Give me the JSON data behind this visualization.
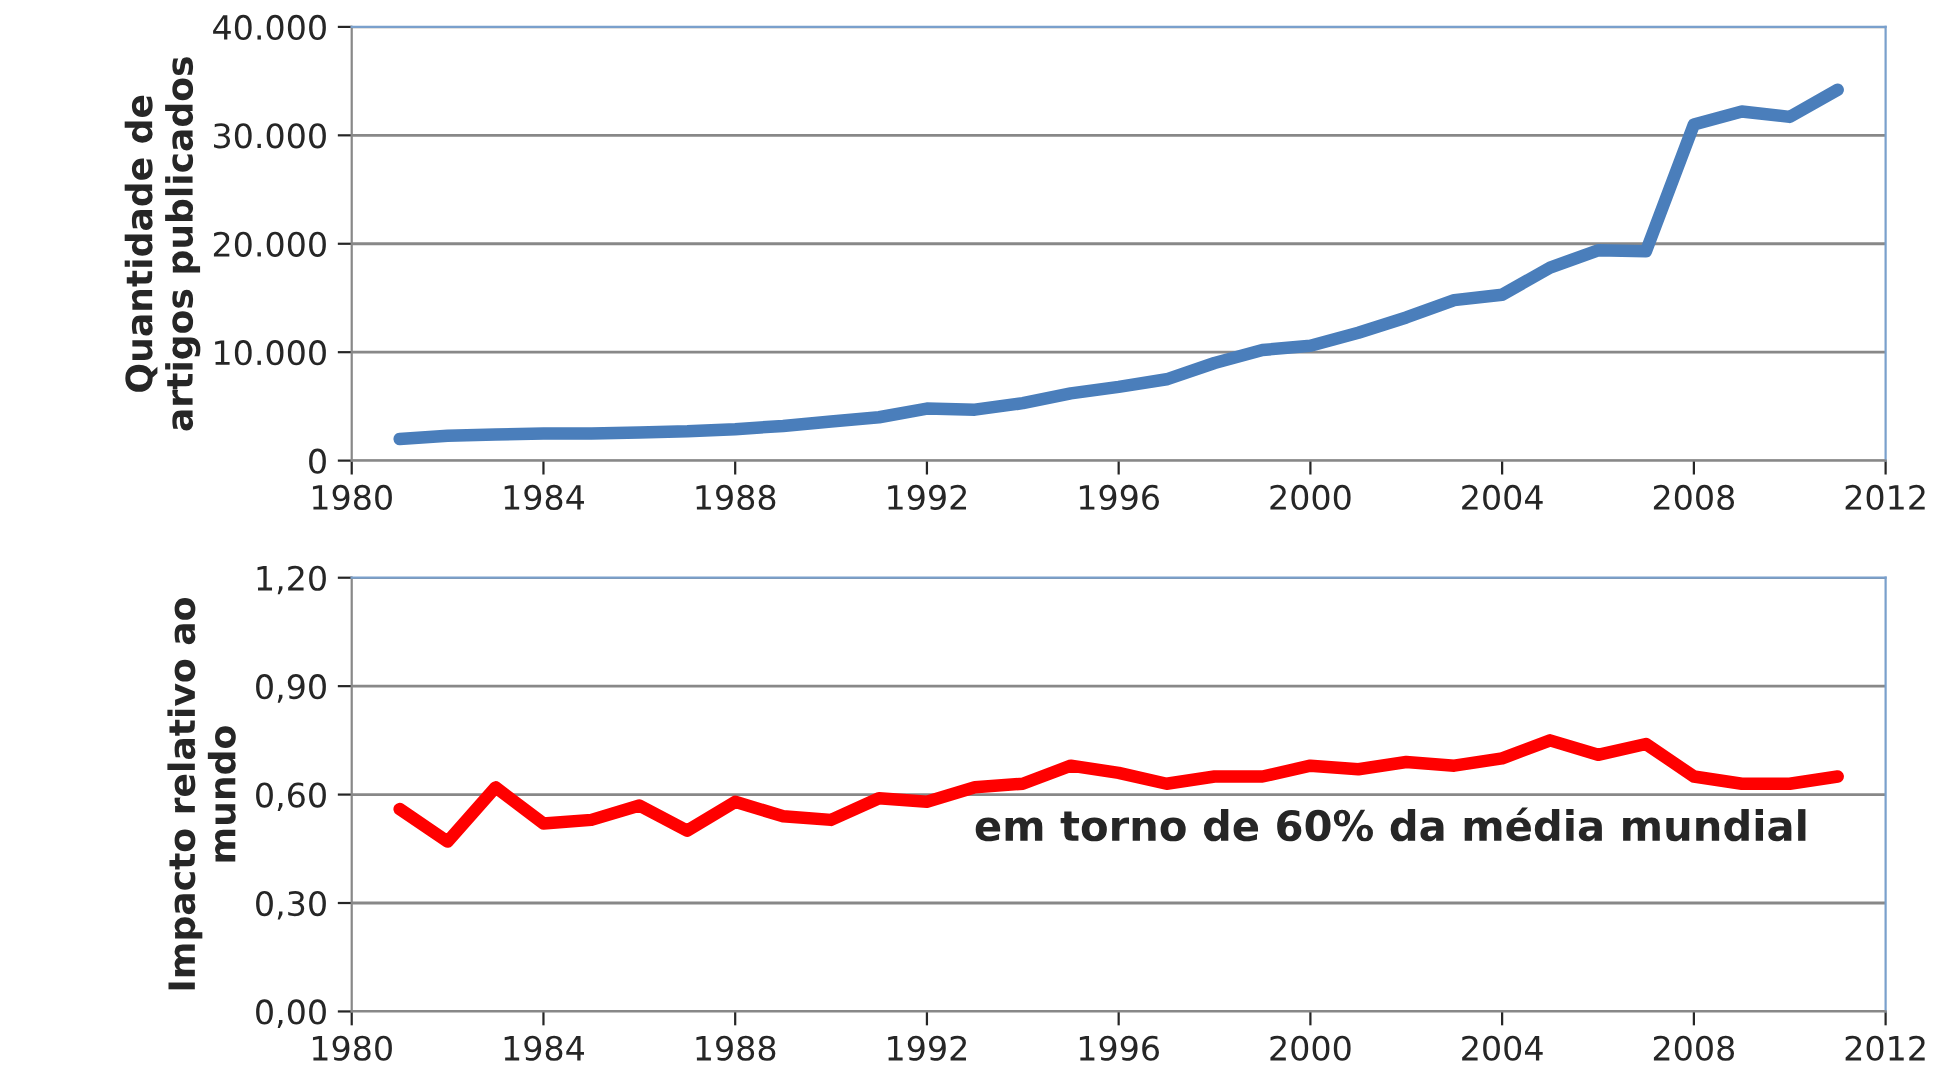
{
  "chart_data": [
    {
      "type": "line",
      "ylabel": "Quantidade de\nartigos publicados",
      "x": [
        1981,
        1982,
        1983,
        1984,
        1985,
        1986,
        1987,
        1988,
        1989,
        1990,
        1991,
        1992,
        1993,
        1994,
        1995,
        1996,
        1997,
        1998,
        1999,
        2000,
        2001,
        2002,
        2003,
        2004,
        2005,
        2006,
        2007,
        2008,
        2009,
        2010,
        2011
      ],
      "series": [
        {
          "color": "#4a7ebb",
          "values": [
            2000,
            2300,
            2400,
            2500,
            2500,
            2600,
            2700,
            2900,
            3200,
            3600,
            4000,
            4800,
            4700,
            5300,
            6200,
            6800,
            7500,
            9000,
            10200,
            10600,
            11800,
            13200,
            14800,
            15300,
            17800,
            19400,
            19300,
            31000,
            32200,
            31700,
            34200
          ]
        }
      ],
      "xlim": [
        1980,
        2012
      ],
      "xticks": [
        1980,
        1984,
        1988,
        1992,
        1996,
        2000,
        2004,
        2008,
        2012
      ],
      "ylim": [
        0,
        40000
      ],
      "yticks": [
        {
          "value": 0,
          "label": "0"
        },
        {
          "value": 10000,
          "label": "10.000"
        },
        {
          "value": 20000,
          "label": "20.000"
        },
        {
          "value": 30000,
          "label": "30.000"
        },
        {
          "value": 40000,
          "label": "40.000"
        }
      ],
      "grid": "y",
      "legend": false,
      "marker": "none",
      "line_style": "solid"
    },
    {
      "type": "line",
      "ylabel": "Impacto relativo ao\nmundo",
      "annotations": [
        "em torno de 60% da média mundial"
      ],
      "x": [
        1981,
        1982,
        1983,
        1984,
        1985,
        1986,
        1987,
        1988,
        1989,
        1990,
        1991,
        1992,
        1993,
        1994,
        1995,
        1996,
        1997,
        1998,
        1999,
        2000,
        2001,
        2002,
        2003,
        2004,
        2005,
        2006,
        2007,
        2008,
        2009,
        2010,
        2011
      ],
      "series": [
        {
          "color": "#ff0000",
          "values": [
            0.56,
            0.47,
            0.62,
            0.52,
            0.53,
            0.57,
            0.5,
            0.58,
            0.54,
            0.53,
            0.59,
            0.58,
            0.62,
            0.63,
            0.68,
            0.66,
            0.63,
            0.65,
            0.65,
            0.68,
            0.67,
            0.69,
            0.68,
            0.7,
            0.75,
            0.71,
            0.74,
            0.65,
            0.63,
            0.63,
            0.65
          ]
        }
      ],
      "xlim": [
        1980,
        2012
      ],
      "xticks": [
        1980,
        1984,
        1988,
        1992,
        1996,
        2000,
        2004,
        2008,
        2012
      ],
      "ylim": [
        0,
        1.2
      ],
      "yticks": [
        {
          "value": 0,
          "label": "0,00"
        },
        {
          "value": 0.3,
          "label": "0,30"
        },
        {
          "value": 0.6,
          "label": "0,60"
        },
        {
          "value": 0.9,
          "label": "0,90"
        },
        {
          "value": 1.2,
          "label": "1,20"
        }
      ],
      "grid": "y",
      "legend": false,
      "marker": "none",
      "line_style": "solid"
    }
  ]
}
